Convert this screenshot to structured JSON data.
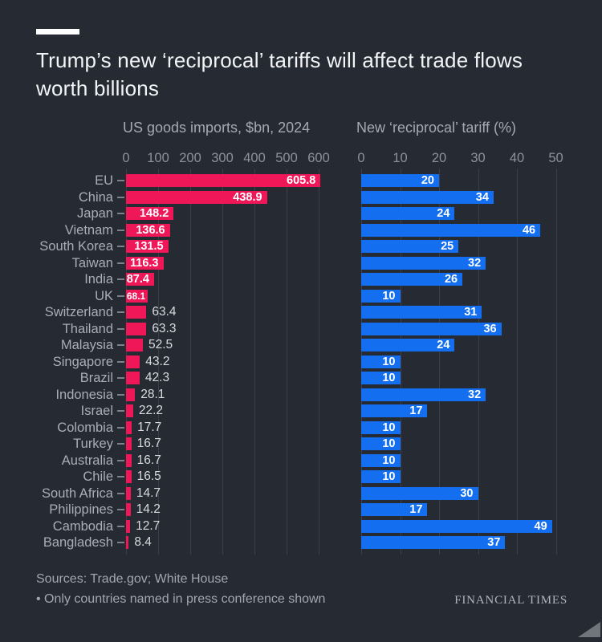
{
  "header": {
    "title": "Trump’s new ‘reciprocal’ tariffs will affect trade flows worth billions"
  },
  "charts": {
    "left": {
      "title": "US goods imports, $bn, 2024",
      "ticks": [
        0,
        100,
        200,
        300,
        400,
        500,
        600
      ],
      "color": "#ef1757"
    },
    "right": {
      "title": "New ‘reciprocal’ tariff (%)",
      "ticks": [
        0,
        10,
        20,
        30,
        40,
        50
      ],
      "color": "#146ff0"
    }
  },
  "chart_data": {
    "type": "bar",
    "orientation": "horizontal",
    "title": "Trump’s new ‘reciprocal’ tariffs will affect trade flows worth billions",
    "grid": true,
    "categories": [
      "EU",
      "China",
      "Japan",
      "Vietnam",
      "South Korea",
      "Taiwan",
      "India",
      "UK",
      "Switzerland",
      "Thailand",
      "Malaysia",
      "Singapore",
      "Brazil",
      "Indonesia",
      "Israel",
      "Colombia",
      "Turkey",
      "Australia",
      "Chile",
      "South Africa",
      "Philippines",
      "Cambodia",
      "Bangladesh"
    ],
    "series": [
      {
        "name": "US goods imports, $bn, 2024",
        "color": "#ef1757",
        "xlim": [
          0,
          600
        ],
        "values": [
          605.8,
          438.9,
          148.2,
          136.6,
          131.5,
          116.3,
          87.4,
          68.1,
          63.4,
          63.3,
          52.5,
          43.2,
          42.3,
          28.1,
          22.2,
          17.7,
          16.7,
          16.7,
          16.5,
          14.7,
          14.2,
          12.7,
          8.4
        ]
      },
      {
        "name": "New ‘reciprocal’ tariff (%)",
        "color": "#146ff0",
        "xlim": [
          0,
          50
        ],
        "values": [
          20,
          34,
          24,
          46,
          25,
          32,
          26,
          10,
          31,
          36,
          24,
          10,
          10,
          32,
          17,
          10,
          10,
          10,
          10,
          30,
          17,
          49,
          37
        ]
      }
    ]
  },
  "footer": {
    "sources": "Sources: Trade.gov; White House",
    "note": "• Only countries named in press conference shown",
    "brand": "FINANCIAL TIMES"
  }
}
